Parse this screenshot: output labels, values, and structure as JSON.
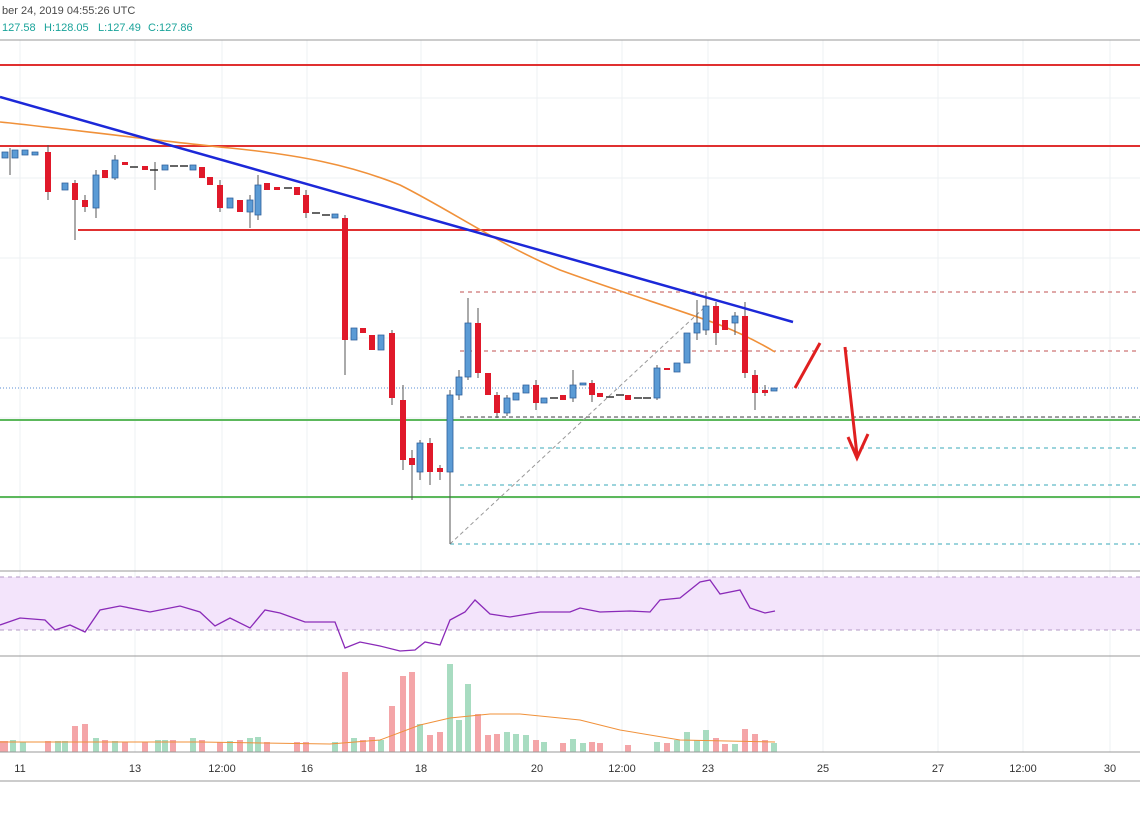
{
  "header": {
    "timestamp": "ber 24, 2019 04:55:26 UTC",
    "open": "127.58",
    "high": "H:128.05",
    "low": "L:127.49",
    "close": "C:127.86"
  },
  "x_axis": {
    "labels": [
      "11",
      "13",
      "12:00",
      "16",
      "18",
      "20",
      "12:00",
      "23",
      "25",
      "27",
      "12:00",
      "30"
    ]
  }
}
